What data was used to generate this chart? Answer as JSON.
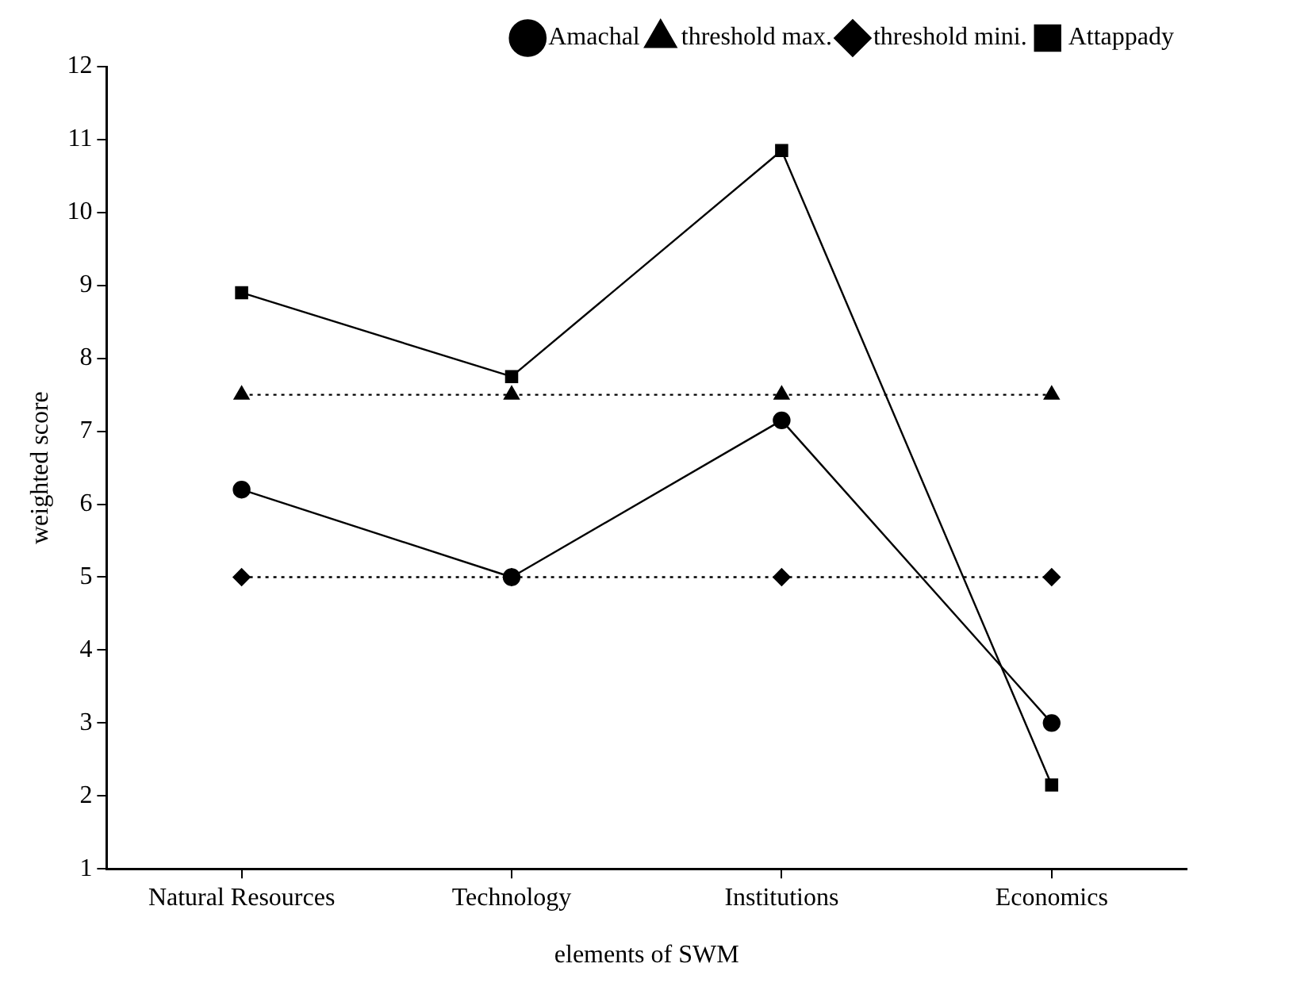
{
  "chart_data": {
    "type": "line",
    "xlabel": "elements of SWM",
    "ylabel": "weighted score",
    "categories": [
      "Natural Resources",
      "Technology",
      "Institutions",
      "Economics"
    ],
    "series": [
      {
        "name": "Amachal",
        "color": "#000000",
        "values": [
          6.2,
          5.0,
          7.15,
          3.0
        ],
        "marker": "circle",
        "line_style": "solid"
      },
      {
        "name": "threshold max.",
        "color": "#000000",
        "values": [
          7.5,
          7.5,
          7.5,
          7.5
        ],
        "marker": "triangle",
        "line_style": "dotted"
      },
      {
        "name": "threshold mini.",
        "color": "#000000",
        "values": [
          5,
          5,
          5,
          5
        ],
        "marker": "diamond",
        "line_style": "dotted"
      },
      {
        "name": "Attappady",
        "color": "#000000",
        "values": [
          8.9,
          7.75,
          10.85,
          2.15
        ],
        "marker": "square",
        "line_style": "solid"
      }
    ],
    "ylim": [
      1,
      12
    ],
    "yticks": [
      1,
      2,
      3,
      4,
      5,
      6,
      7,
      8,
      9,
      10,
      11,
      12
    ],
    "grid": false,
    "legend": "top right"
  }
}
